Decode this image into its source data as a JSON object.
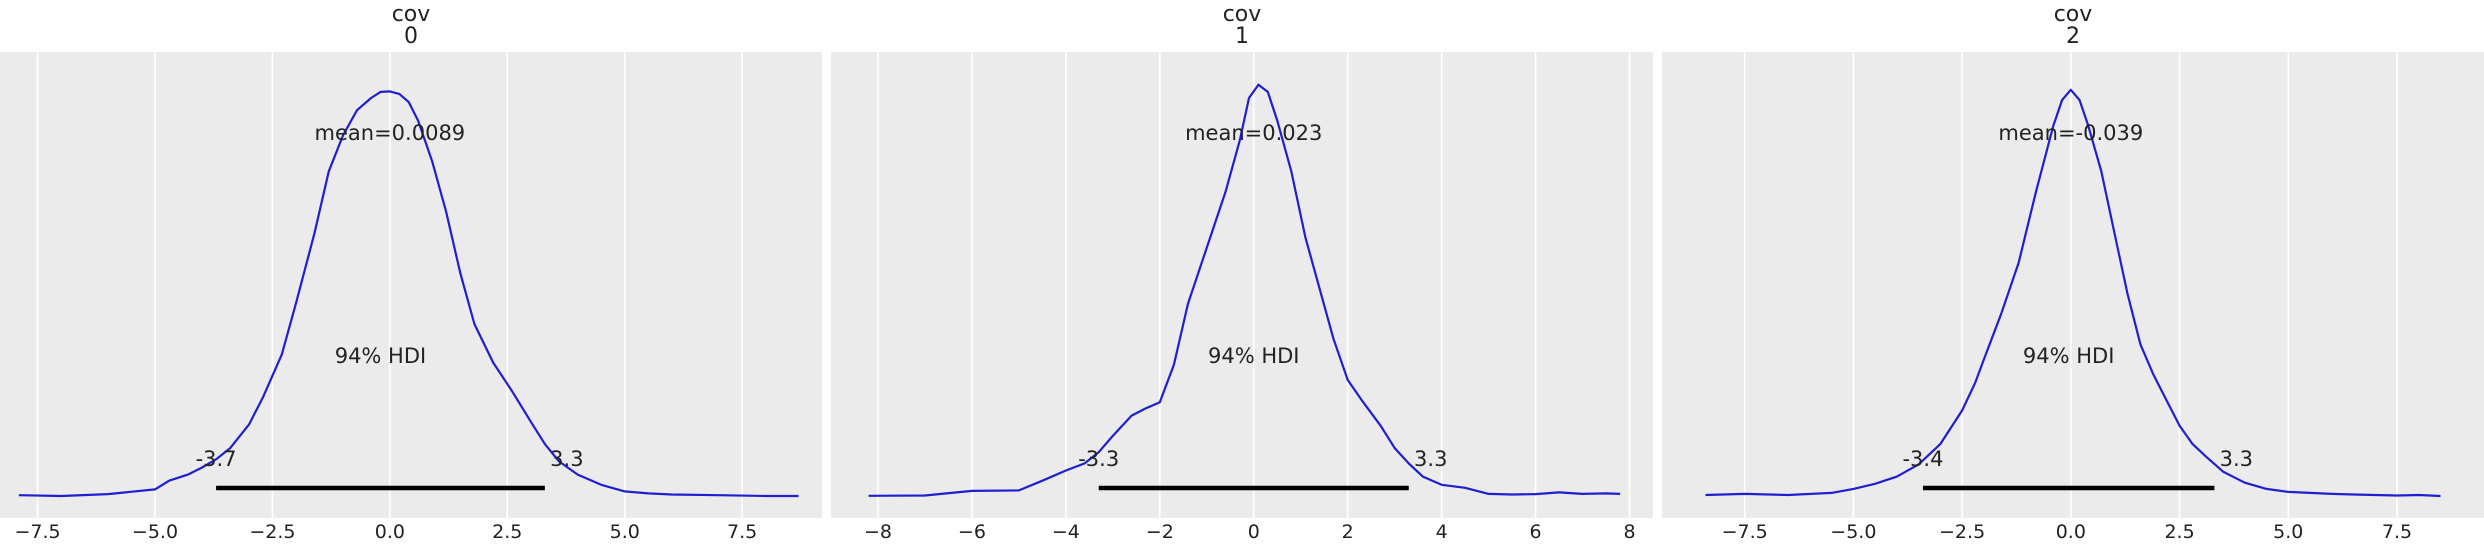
{
  "chart_data": [
    {
      "type": "area",
      "title_line1": "cov",
      "title_line2": "0",
      "xlim": [
        -8.3,
        9.2
      ],
      "xticks": [
        -7.5,
        -5.0,
        -2.5,
        0.0,
        2.5,
        5.0,
        7.5
      ],
      "xtick_labels": [
        "−7.5",
        "−5.0",
        "−2.5",
        "0.0",
        "2.5",
        "5.0",
        "7.5"
      ],
      "mean_label": "mean=0.0089",
      "hdi_label": "94% HDI",
      "hdi": [
        -3.7,
        3.3
      ],
      "hdi_low_label": "-3.7",
      "hdi_high_label": "3.3",
      "grid": true,
      "line_color": "#1f1fd0",
      "background": "#ebebeb",
      "density": {
        "x": [
          -7.9,
          -7.0,
          -6.0,
          -5.0,
          -4.7,
          -4.3,
          -4.0,
          -3.7,
          -3.4,
          -3.0,
          -2.7,
          -2.3,
          -2.0,
          -1.6,
          -1.3,
          -1.0,
          -0.7,
          -0.4,
          -0.2,
          0.0,
          0.2,
          0.4,
          0.6,
          0.9,
          1.2,
          1.5,
          1.8,
          2.2,
          2.6,
          3.0,
          3.3,
          3.6,
          4.0,
          4.5,
          5.0,
          5.5,
          6.0,
          7.0,
          8.0,
          8.7
        ],
        "y": [
          0.0018,
          0.001,
          0.0028,
          0.0075,
          0.016,
          0.022,
          0.029,
          0.037,
          0.048,
          0.071,
          0.098,
          0.14,
          0.19,
          0.26,
          0.32,
          0.355,
          0.38,
          0.392,
          0.398,
          0.3985,
          0.396,
          0.388,
          0.37,
          0.33,
          0.28,
          0.22,
          0.17,
          0.132,
          0.104,
          0.074,
          0.052,
          0.035,
          0.022,
          0.012,
          0.0055,
          0.0035,
          0.0025,
          0.0018,
          0.001,
          0.001
        ]
      }
    },
    {
      "type": "area",
      "title_line1": "cov",
      "title_line2": "1",
      "xlim": [
        -9.0,
        8.5
      ],
      "xticks": [
        -8,
        -6,
        -4,
        -2,
        0,
        2,
        4,
        6,
        8
      ],
      "xtick_labels": [
        "−8",
        "−6",
        "−4",
        "−2",
        "0",
        "2",
        "4",
        "6",
        "8"
      ],
      "mean_label": "mean=0.023",
      "hdi_label": "94% HDI",
      "hdi": [
        -3.3,
        3.3
      ],
      "hdi_low_label": "-3.3",
      "hdi_high_label": "3.3",
      "grid": true,
      "line_color": "#1f1fd0",
      "background": "#ebebeb",
      "density": {
        "x": [
          -8.2,
          -7.0,
          -6.0,
          -5.0,
          -4.5,
          -4.0,
          -3.6,
          -3.3,
          -3.0,
          -2.6,
          -2.3,
          -2.0,
          -1.7,
          -1.4,
          -1.0,
          -0.6,
          -0.3,
          -0.1,
          0.1,
          0.3,
          0.5,
          0.8,
          1.1,
          1.4,
          1.7,
          2.0,
          2.3,
          2.7,
          3.0,
          3.3,
          3.6,
          4.0,
          4.5,
          5.0,
          5.5,
          6.0,
          6.5,
          7.0,
          7.5,
          7.8
        ],
        "y": [
          0.0012,
          0.0015,
          0.006,
          0.0065,
          0.016,
          0.026,
          0.033,
          0.044,
          0.06,
          0.08,
          0.087,
          0.093,
          0.13,
          0.19,
          0.245,
          0.3,
          0.35,
          0.392,
          0.405,
          0.398,
          0.37,
          0.32,
          0.255,
          0.205,
          0.155,
          0.115,
          0.095,
          0.07,
          0.048,
          0.033,
          0.02,
          0.012,
          0.009,
          0.003,
          0.0025,
          0.0028,
          0.0045,
          0.003,
          0.0035,
          0.003
        ]
      }
    },
    {
      "type": "area",
      "title_line1": "cov",
      "title_line2": "2",
      "xlim": [
        -9.4,
        9.5
      ],
      "xticks": [
        -7.5,
        -5.0,
        -2.5,
        0.0,
        2.5,
        5.0,
        7.5
      ],
      "xtick_labels": [
        "−7.5",
        "−5.0",
        "−2.5",
        "0.0",
        "2.5",
        "5.0",
        "7.5"
      ],
      "mean_label": "mean=-0.039",
      "hdi_label": "94% HDI",
      "hdi": [
        -3.4,
        3.3
      ],
      "hdi_low_label": "-3.4",
      "hdi_high_label": "3.3",
      "grid": true,
      "line_color": "#1f1fd0",
      "background": "#ebebeb",
      "density": {
        "x": [
          -8.4,
          -7.5,
          -6.5,
          -5.5,
          -5.0,
          -4.5,
          -4.0,
          -3.5,
          -3.0,
          -2.5,
          -2.2,
          -2.0,
          -1.6,
          -1.2,
          -0.8,
          -0.4,
          -0.2,
          0.0,
          0.2,
          0.4,
          0.7,
          1.0,
          1.3,
          1.6,
          1.9,
          2.2,
          2.5,
          2.8,
          3.1,
          3.5,
          4.0,
          4.5,
          5.0,
          5.5,
          6.0,
          6.5,
          7.0,
          7.5,
          8.0,
          8.5
        ],
        "y": [
          0.002,
          0.003,
          0.002,
          0.004,
          0.008,
          0.013,
          0.02,
          0.032,
          0.052,
          0.085,
          0.112,
          0.135,
          0.18,
          0.23,
          0.3,
          0.365,
          0.39,
          0.4,
          0.39,
          0.365,
          0.32,
          0.26,
          0.2,
          0.15,
          0.12,
          0.095,
          0.07,
          0.052,
          0.04,
          0.025,
          0.014,
          0.008,
          0.005,
          0.004,
          0.003,
          0.0025,
          0.002,
          0.0015,
          0.002,
          0.001
        ]
      }
    }
  ]
}
